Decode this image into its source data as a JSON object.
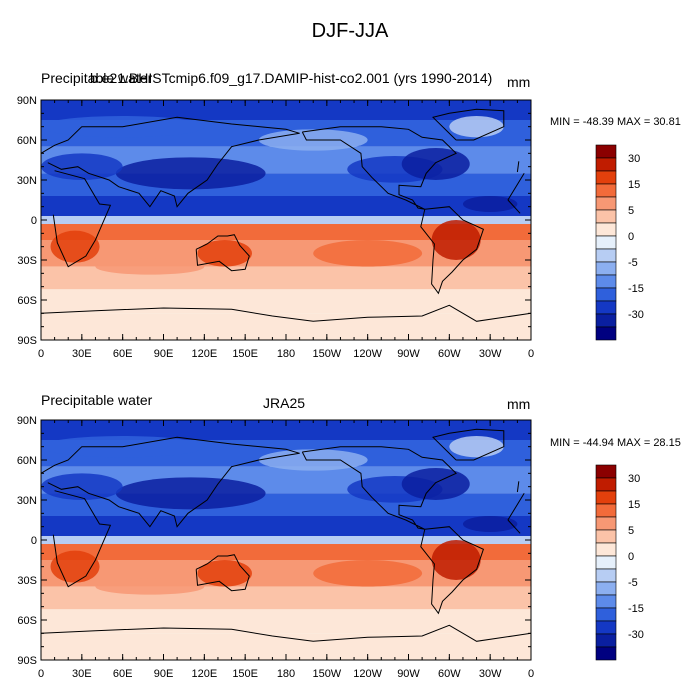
{
  "title": "DJF-JJA",
  "panels": [
    {
      "left_label": "Precipitable water",
      "center_label": "b.e21.BHISTcmip6.f09_g17.DAMIP-hist-co2.001 (yrs 1990-2014)",
      "units": "mm",
      "stats_text": "MIN = -48.39 MAX =  30.81",
      "min": -48.39,
      "max": 30.81
    },
    {
      "left_label": "Precipitable water",
      "center_label": "JRA25",
      "units": "mm",
      "stats_text": "MIN = -44.94 MAX = 28.15",
      "min": -44.94,
      "max": 28.15
    }
  ],
  "lat_ticks": [
    "90N",
    "60N",
    "30N",
    "0",
    "30S",
    "60S",
    "90S"
  ],
  "lon_ticks": [
    "0",
    "30E",
    "60E",
    "90E",
    "120E",
    "150E",
    "180",
    "150W",
    "120W",
    "90W",
    "60W",
    "30W",
    "0"
  ],
  "colorbar": {
    "labels": [
      "30",
      "15",
      "5",
      "0",
      "-5",
      "-15",
      "-30"
    ],
    "colors": [
      "#8b0000",
      "#c01c00",
      "#e3400c",
      "#f26b3a",
      "#f79874",
      "#fbc3a8",
      "#fde7d8",
      "#e6f0fb",
      "#b7cdf3",
      "#8caff0",
      "#5d8bea",
      "#2f60dc",
      "#1438c4",
      "#0a1fa0",
      "#000080"
    ]
  }
}
